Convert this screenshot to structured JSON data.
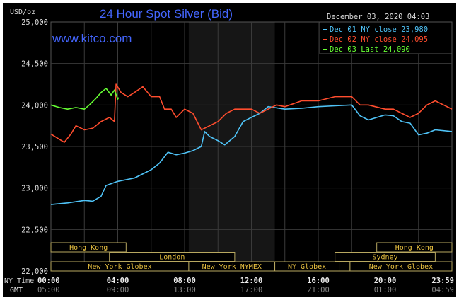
{
  "chart_data": {
    "type": "line",
    "title": "24 Hour Spot Silver (Bid)",
    "watermark": "www.kitco.com",
    "timestamp": "December 03, 2020 04:03",
    "ylabel": "USD/oz",
    "ylim": [
      22000,
      25000
    ],
    "yticks": [
      "22,000",
      "22,500",
      "23,000",
      "23,500",
      "24,000",
      "24,500",
      "25,000"
    ],
    "xlim": [
      0,
      24
    ],
    "x_row_labels": {
      "ny": "NY Time",
      "gmt": "GMT"
    },
    "xticks_ny": [
      "00:00",
      "04:00",
      "08:00",
      "12:00",
      "16:00",
      "20:00",
      "23:59"
    ],
    "xticks_gmt": [
      "05:00",
      "09:00",
      "13:00",
      "17:00",
      "21:00",
      "01:00",
      "04:59"
    ],
    "grid": true,
    "legend_position": "top-right",
    "series": [
      {
        "name": "Dec 01 NY close 23,980",
        "color": "#4fc3f7",
        "x": [
          0,
          1,
          2,
          2.5,
          3,
          3.3,
          4,
          5,
          6,
          6.5,
          7,
          7.5,
          8,
          8.5,
          9,
          9.2,
          9.5,
          10,
          10.4,
          11,
          11.5,
          12,
          12.5,
          13,
          14,
          15,
          16,
          17,
          18,
          18.5,
          19,
          20,
          20.5,
          21,
          21.5,
          22,
          22.5,
          23,
          24
        ],
        "y": [
          22800,
          22820,
          22850,
          22840,
          22900,
          23030,
          23080,
          23120,
          23220,
          23300,
          23430,
          23400,
          23420,
          23450,
          23500,
          23680,
          23620,
          23570,
          23520,
          23620,
          23800,
          23850,
          23900,
          23980,
          23950,
          23960,
          23980,
          23990,
          24000,
          23870,
          23820,
          23880,
          23870,
          23800,
          23780,
          23640,
          23660,
          23700,
          23680
        ]
      },
      {
        "name": "Dec 02 NY close 24,095",
        "color": "#ff4d2e",
        "x": [
          0,
          0.4,
          0.8,
          1.2,
          1.5,
          2,
          2.5,
          3,
          3.5,
          3.8,
          3.9,
          4.2,
          4.6,
          5,
          5.5,
          6,
          6.5,
          6.8,
          7.2,
          7.5,
          8,
          8.5,
          9,
          9.5,
          10,
          10.5,
          11,
          11.5,
          12,
          12.5,
          13,
          13.5,
          14,
          15,
          16,
          17,
          17.5,
          18,
          18.5,
          19,
          20,
          20.5,
          21,
          21.5,
          22,
          22.5,
          23,
          23.5,
          24
        ],
        "y": [
          23650,
          23600,
          23550,
          23650,
          23750,
          23700,
          23720,
          23800,
          23850,
          23800,
          24250,
          24150,
          24100,
          24150,
          24220,
          24100,
          24100,
          23950,
          23950,
          23850,
          23950,
          23900,
          23700,
          23750,
          23800,
          23900,
          23950,
          23950,
          23950,
          23900,
          23950,
          24000,
          23980,
          24050,
          24050,
          24100,
          24100,
          24100,
          24000,
          24000,
          23950,
          23950,
          23900,
          23850,
          23900,
          24000,
          24050,
          24000,
          23950
        ]
      },
      {
        "name": "Dec 03 Last 24,090",
        "color": "#66ff33",
        "x": [
          0,
          0.5,
          1,
          1.5,
          2,
          2.3,
          2.7,
          3,
          3.3,
          3.6,
          3.8,
          4.0,
          4.05
        ],
        "y": [
          24000,
          23970,
          23950,
          23970,
          23950,
          24000,
          24080,
          24150,
          24200,
          24120,
          24180,
          24070,
          24090
        ]
      }
    ],
    "sessions": [
      {
        "label": "Hong Kong",
        "row": 0,
        "start": 0,
        "end": 4.5
      },
      {
        "label": "London",
        "row": 1,
        "start": 3.5,
        "end": 11
      },
      {
        "label": "New York Globex",
        "row": 2,
        "start": 0,
        "end": 8.25
      },
      {
        "label": "New York NYMEX",
        "row": 2,
        "start": 8.25,
        "end": 13.4
      },
      {
        "label": "NY Globex",
        "row": 2,
        "start": 13.4,
        "end": 17.25
      },
      {
        "label": "",
        "row": 2,
        "start": 17.25,
        "end": 17.9
      },
      {
        "label": "New York Globex",
        "row": 2,
        "start": 17.9,
        "end": 24
      },
      {
        "label": "Sydney",
        "row": 1,
        "start": 17,
        "end": 23
      },
      {
        "label": "Hong Kong",
        "row": 0,
        "start": 19.5,
        "end": 24
      }
    ]
  }
}
